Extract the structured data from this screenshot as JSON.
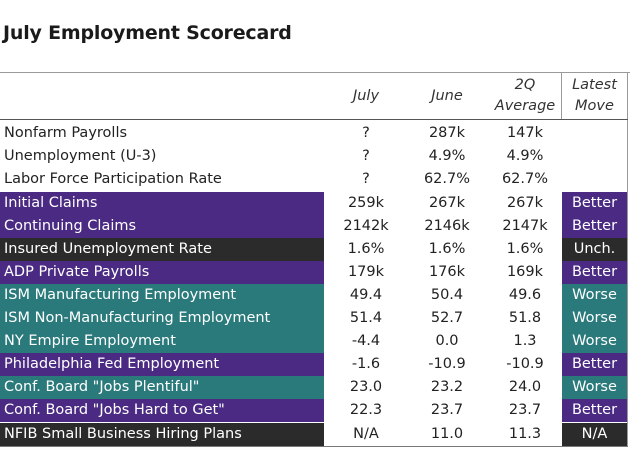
{
  "title": "July Employment Scorecard",
  "headers": {
    "july": "July",
    "june": "June",
    "avg_line1": "2Q",
    "avg_line2": "Average",
    "move_line1": "Latest",
    "move_line2": "Move"
  },
  "colors": {
    "purple": "#4a2a82",
    "teal": "#2a7a7c",
    "black": "#2b2b2b"
  },
  "rows": [
    {
      "name": "Nonfarm Payrolls",
      "july": "?",
      "june": "287k",
      "avg": "147k",
      "move": "",
      "color": "none"
    },
    {
      "name": "Unemployment (U-3)",
      "july": "?",
      "june": "4.9%",
      "avg": "4.9%",
      "move": "",
      "color": "none"
    },
    {
      "name": "Labor Force Participation Rate",
      "july": "?",
      "june": "62.7%",
      "avg": "62.7%",
      "move": "",
      "color": "none"
    },
    {
      "name": "Initial Claims",
      "july": "259k",
      "june": "267k",
      "avg": "267k",
      "move": "Better",
      "color": "purple"
    },
    {
      "name": "Continuing Claims",
      "july": "2142k",
      "june": "2146k",
      "avg": "2147k",
      "move": "Better",
      "color": "purple"
    },
    {
      "name": "Insured Unemployment Rate",
      "july": "1.6%",
      "june": "1.6%",
      "avg": "1.6%",
      "move": "Unch.",
      "color": "black"
    },
    {
      "name": "ADP Private Payrolls",
      "july": "179k",
      "june": "176k",
      "avg": "169k",
      "move": "Better",
      "color": "purple"
    },
    {
      "name": "ISM Manufacturing Employment",
      "july": "49.4",
      "june": "50.4",
      "avg": "49.6",
      "move": "Worse",
      "color": "teal"
    },
    {
      "name": "ISM Non-Manufacturing Employment",
      "july": "51.4",
      "june": "52.7",
      "avg": "51.8",
      "move": "Worse",
      "color": "teal"
    },
    {
      "name": "NY Empire Employment",
      "july": "-4.4",
      "june": "0.0",
      "avg": "1.3",
      "move": "Worse",
      "color": "teal"
    },
    {
      "name": "Philadelphia Fed Employment",
      "july": "-1.6",
      "june": "-10.9",
      "avg": "-10.9",
      "move": "Better",
      "color": "purple"
    },
    {
      "name": "Conf. Board \"Jobs Plentiful\"",
      "july": "23.0",
      "june": "23.2",
      "avg": "24.0",
      "move": "Worse",
      "color": "teal"
    },
    {
      "name": "Conf. Board \"Jobs Hard to Get\"",
      "july": "22.3",
      "june": "23.7",
      "avg": "23.7",
      "move": "Better",
      "color": "purple"
    },
    {
      "name": "NFIB Small Business Hiring Plans",
      "july": "N/A",
      "june": "11.0",
      "avg": "11.3",
      "move": "N/A",
      "color": "black"
    }
  ]
}
